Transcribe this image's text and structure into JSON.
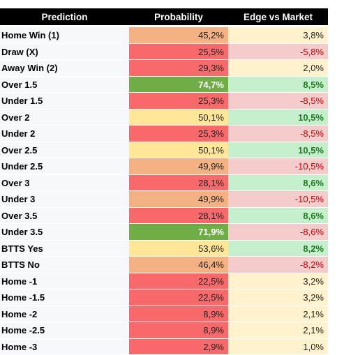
{
  "table": {
    "headers": [
      "Prediction",
      "Probability",
      "Edge vs Market"
    ],
    "rows": [
      [
        "Home Win (1)",
        "45,2%",
        "3,8%"
      ],
      [
        "Draw (X)",
        "25,5%",
        "-5,8%"
      ],
      [
        "Away Win (2)",
        "29,3%",
        "2,0%"
      ],
      [
        "Over 1.5",
        "74,7%",
        "8,5%"
      ],
      [
        "Under 1.5",
        "25,3%",
        "-8,5%"
      ],
      [
        "Over 2",
        "50,1%",
        "10,5%"
      ],
      [
        "Under 2",
        "25,3%",
        "-8,5%"
      ],
      [
        "Over 2.5",
        "50,1%",
        "10,5%"
      ],
      [
        "Under 2.5",
        "49,9%",
        "-10,5%"
      ],
      [
        "Over 3",
        "28,1%",
        "8,6%"
      ],
      [
        "Under 3",
        "49,9%",
        "-10,5%"
      ],
      [
        "Over 3.5",
        "28,1%",
        "8,6%"
      ],
      [
        "Under 3.5",
        "71,9%",
        "-8,6%"
      ],
      [
        "BTTS Yes",
        "53,6%",
        "8,2%"
      ],
      [
        "BTTS No",
        "46,4%",
        "-8,2%"
      ],
      [
        "Home -1",
        "22,5%",
        "3,2%"
      ],
      [
        "Home -1.5",
        "22,5%",
        "3,2%"
      ],
      [
        "Home -2",
        "8,9%",
        "2,1%"
      ],
      [
        "Home -2.5",
        "8,9%",
        "2,1%"
      ],
      [
        "Home -3",
        "2,9%",
        "1,0%"
      ]
    ],
    "fills": [
      [
        "#f4b183",
        "#fff2cc"
      ],
      [
        "#f8696b",
        "#f4cccc"
      ],
      [
        "#f8696b",
        "#fff2cc"
      ],
      [
        "#70ad47",
        "#c6efce"
      ],
      [
        "#f8696b",
        "#f4cccc"
      ],
      [
        "#ffe699",
        "#c6efce"
      ],
      [
        "#f8696b",
        "#f4cccc"
      ],
      [
        "#ffe699",
        "#c6efce"
      ],
      [
        "#f4b183",
        "#f4cccc"
      ],
      [
        "#f8696b",
        "#c6efce"
      ],
      [
        "#f4b183",
        "#f4cccc"
      ],
      [
        "#f8696b",
        "#c6efce"
      ],
      [
        "#70ad47",
        "#f4cccc"
      ],
      [
        "#ffe699",
        "#c6efce"
      ],
      [
        "#f4b183",
        "#f4cccc"
      ],
      [
        "#f8696b",
        "#fff2cc"
      ],
      [
        "#f8696b",
        "#fff2cc"
      ],
      [
        "#f8696b",
        "#fff2cc"
      ],
      [
        "#f8696b",
        "#fff2cc"
      ],
      [
        "#f8696b",
        "#fff2cc"
      ]
    ]
  }
}
